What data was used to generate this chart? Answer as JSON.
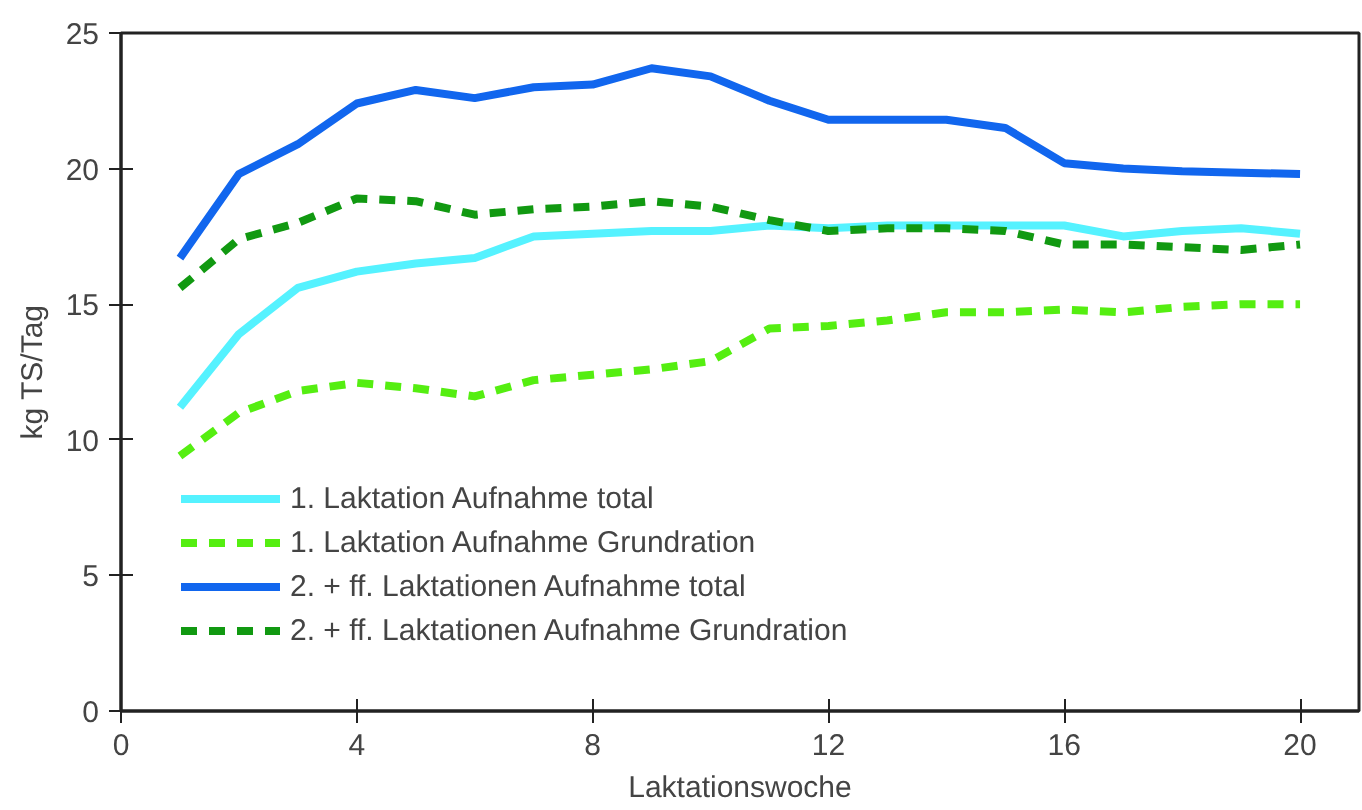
{
  "chart_data": {
    "type": "line",
    "xlabel": "Laktationswoche",
    "ylabel": "kg TS/Tag",
    "x": [
      1,
      2,
      3,
      4,
      5,
      6,
      7,
      8,
      9,
      10,
      11,
      12,
      13,
      14,
      15,
      16,
      17,
      18,
      19,
      20
    ],
    "xlim": [
      0,
      21
    ],
    "xticks": [
      0,
      4,
      8,
      12,
      16,
      20
    ],
    "ylim": [
      0,
      25
    ],
    "yticks": [
      0,
      5,
      10,
      15,
      20,
      25
    ],
    "legend": "bottom left",
    "grid": false,
    "series": [
      {
        "name": "1. Laktation Aufnahme total",
        "color": "#55f2ff",
        "line_style": "solid",
        "values": [
          11.2,
          13.9,
          15.6,
          16.2,
          16.5,
          16.7,
          17.5,
          17.6,
          17.7,
          17.7,
          17.9,
          17.8,
          17.9,
          17.9,
          17.9,
          17.9,
          17.5,
          17.7,
          17.8,
          17.6
        ]
      },
      {
        "name": "1. Laktation Aufnahme Grundration",
        "color": "#55ee11",
        "line_style": "dashed",
        "values": [
          9.4,
          11.0,
          11.8,
          12.1,
          11.9,
          11.6,
          12.2,
          12.4,
          12.6,
          12.9,
          14.1,
          14.2,
          14.4,
          14.7,
          14.7,
          14.8,
          14.7,
          14.9,
          15.0,
          15.0
        ]
      },
      {
        "name": "2. + ff. Laktationen Aufnahme total",
        "color": "#1166ee",
        "line_style": "solid",
        "values": [
          16.7,
          19.8,
          20.9,
          22.4,
          22.9,
          22.6,
          23.0,
          23.1,
          23.7,
          23.4,
          22.5,
          21.8,
          21.8,
          21.8,
          21.5,
          20.2,
          20.0,
          19.9,
          19.85,
          19.8
        ]
      },
      {
        "name": "2. + ff. Laktationen Aufnahme Grundration",
        "color": "#119911",
        "line_style": "dashed",
        "values": [
          15.6,
          17.4,
          18.0,
          18.9,
          18.8,
          18.3,
          18.5,
          18.6,
          18.8,
          18.6,
          18.1,
          17.7,
          17.8,
          17.8,
          17.7,
          17.2,
          17.2,
          17.1,
          17.0,
          17.2
        ]
      }
    ]
  }
}
